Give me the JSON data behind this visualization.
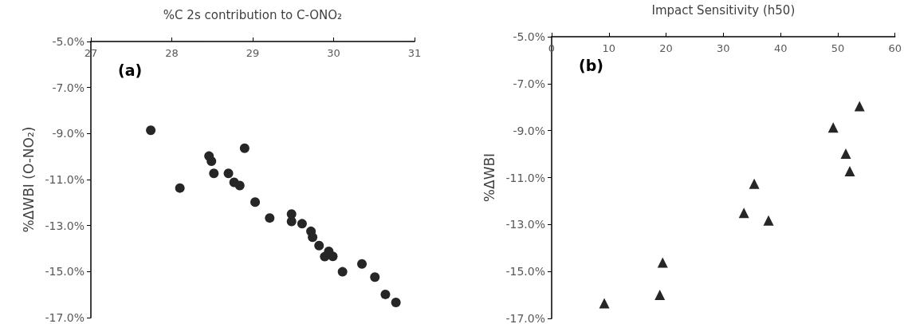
{
  "chart_data": [
    {
      "type": "scatter",
      "xlabel": "%C 2s contribution to C-ONO₂",
      "ylabel": "%ΔWBI (O-NO₂)",
      "annotations": [
        "(a)"
      ],
      "marker": "circle",
      "grid": false,
      "xlim": [
        27,
        31
      ],
      "xticks": [
        27,
        28,
        29,
        30,
        31
      ],
      "ylim": [
        -17,
        -5
      ],
      "yticks": [
        {
          "value": -5,
          "label": "-5.0%"
        },
        {
          "value": -7,
          "label": "-7.0%"
        },
        {
          "value": -9,
          "label": "-9.0%"
        },
        {
          "value": -11,
          "label": "-11.0%"
        },
        {
          "value": -13,
          "label": "-13.0%"
        },
        {
          "value": -15,
          "label": "-15.0%"
        },
        {
          "value": -17,
          "label": "-17.0%"
        }
      ],
      "series": [
        {
          "color": "#262626",
          "x": [
            27.74,
            28.1,
            28.46,
            28.49,
            28.52,
            28.7,
            28.77,
            28.84,
            28.9,
            29.03,
            29.21,
            29.48,
            29.48,
            29.61,
            29.72,
            29.74,
            29.82,
            29.89,
            29.94,
            29.99,
            30.11,
            30.35,
            30.51,
            30.64,
            30.77
          ],
          "values": [
            -8.86,
            -11.37,
            -9.98,
            -10.2,
            -10.73,
            -10.73,
            -11.12,
            -11.26,
            -9.64,
            -11.98,
            -12.67,
            -12.5,
            -12.82,
            -12.92,
            -13.25,
            -13.51,
            -13.87,
            -14.35,
            -14.12,
            -14.34,
            -15.01,
            -14.67,
            -15.24,
            -15.99,
            -16.34
          ]
        }
      ]
    },
    {
      "type": "scatter",
      "xlabel": "Impact Sensitivity (h50)",
      "ylabel": "%ΔWBI",
      "annotations": [
        "(b)"
      ],
      "marker": "triangle",
      "grid": false,
      "xlim": [
        0,
        60
      ],
      "xticks": [
        0,
        10,
        20,
        30,
        40,
        50,
        60
      ],
      "ylim": [
        -17,
        -5
      ],
      "yticks": [
        {
          "value": -5,
          "label": "-5.0%"
        },
        {
          "value": -7,
          "label": "-7.0%"
        },
        {
          "value": -9,
          "label": "-9.0%"
        },
        {
          "value": -11,
          "label": "-11.0%"
        },
        {
          "value": -13,
          "label": "-13.0%"
        },
        {
          "value": -15,
          "label": "-15.0%"
        },
        {
          "value": -17,
          "label": "-17.0%"
        }
      ],
      "series": [
        {
          "color": "#262626",
          "x": [
            9.2,
            18.9,
            19.4,
            33.6,
            35.4,
            37.9,
            49.2,
            51.4,
            52.1,
            53.8
          ],
          "values": [
            -16.35,
            -16.0,
            -14.62,
            -12.5,
            -11.26,
            -12.83,
            -8.87,
            -9.98,
            -10.73,
            -7.96
          ]
        }
      ]
    }
  ]
}
